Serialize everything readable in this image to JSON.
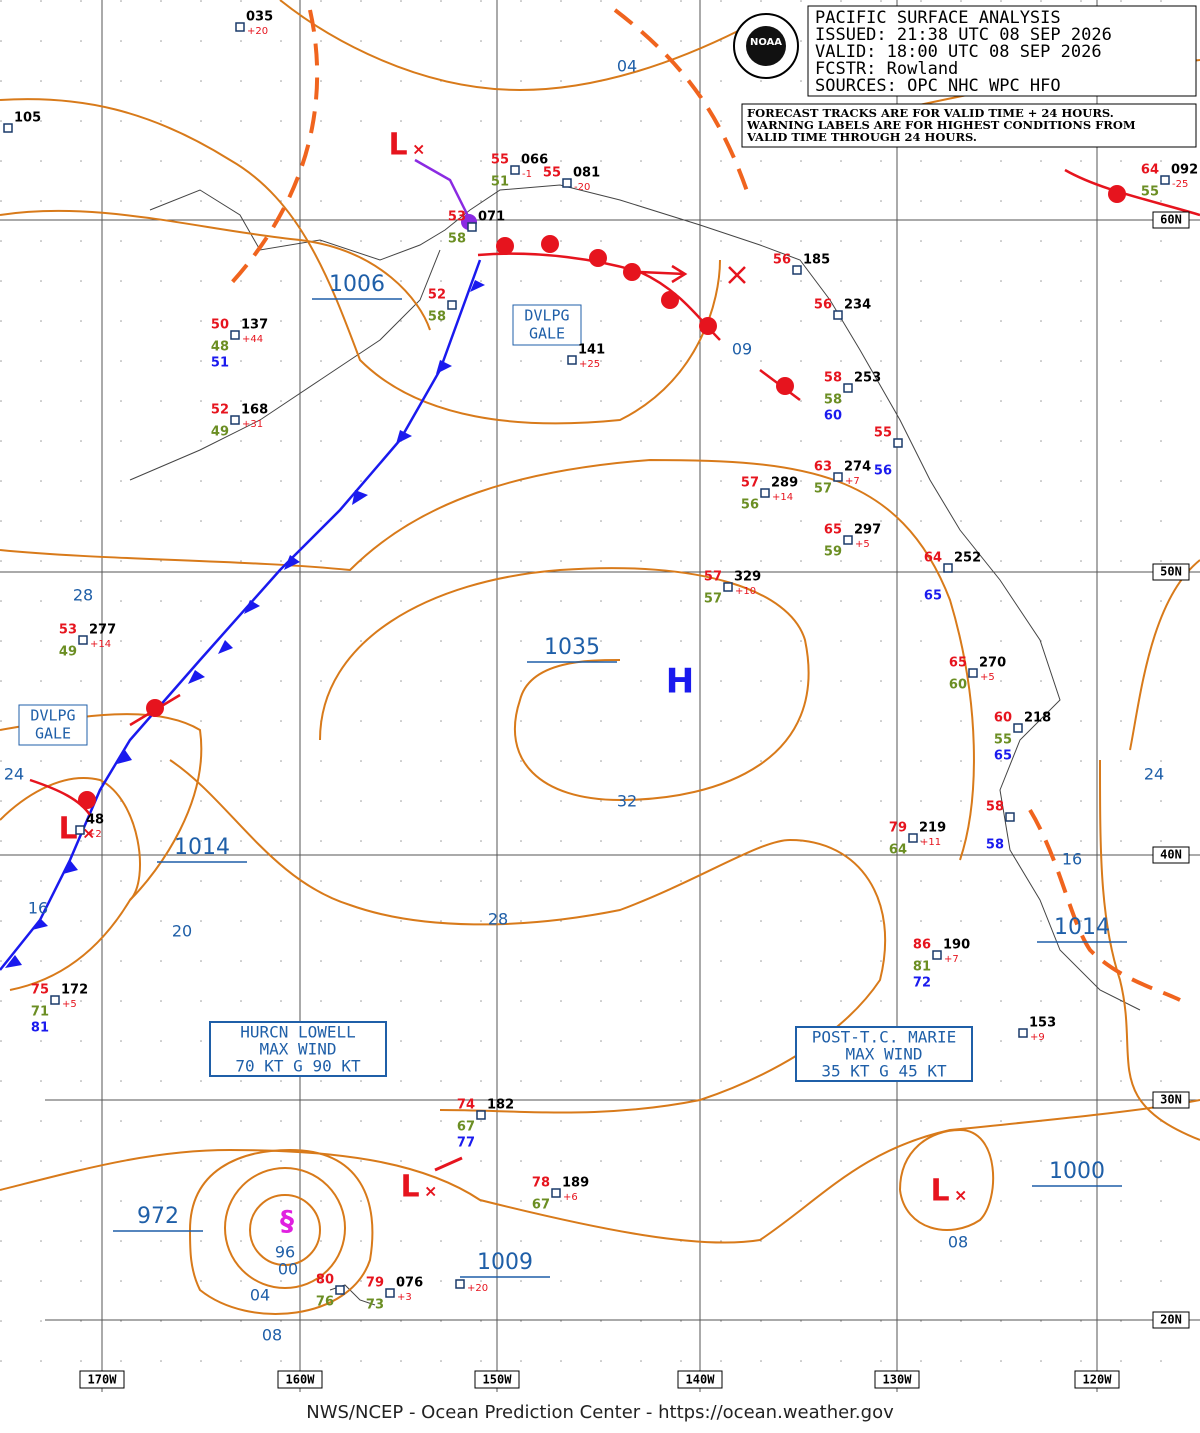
{
  "header": {
    "lines": [
      "PACIFIC SURFACE ANALYSIS",
      "ISSUED: 21:38 UTC 08 SEP 2026",
      "VALID: 18:00 UTC 08 SEP 2026",
      "FCSTR: Rowland",
      "SOURCES: OPC NHC WPC HFO"
    ],
    "logo": "NOAA"
  },
  "note": [
    "FORECAST TRACKS ARE FOR VALID TIME + 24 HOURS.",
    "WARNING LABELS ARE FOR HIGHEST CONDITIONS FROM",
    "VALID TIME THROUGH 24 HOURS."
  ],
  "isobar_labels": [
    "04",
    "1006",
    "09",
    "28",
    "1035",
    "32",
    "24",
    "1014",
    "16",
    "20",
    "28",
    "16",
    "1014",
    "24",
    "972",
    "96",
    "00",
    "04",
    "08",
    "1009",
    "1000",
    "08"
  ],
  "centers": [
    "H",
    "L",
    "L",
    "L",
    "L"
  ],
  "warnings": [
    "DVLPG GALE",
    "DVLPG GALE"
  ],
  "storm_boxes": [
    [
      "HURCN LOWELL",
      "MAX WIND",
      "70 KT G 90 KT"
    ],
    [
      "POST-T.C. MARIE",
      "MAX WIND",
      "35 KT G 45 KT"
    ]
  ],
  "lat_labels": [
    "60N",
    "50N",
    "40N",
    "30N",
    "20N"
  ],
  "lon_labels": [
    "170W",
    "160W",
    "150W",
    "140W",
    "130W",
    "120W"
  ],
  "stations": [
    {
      "pressure": "035",
      "tendency": "+20"
    },
    {
      "pressure": "105"
    },
    {
      "pressure": "066",
      "temp": "55",
      "dew": "51",
      "tendency": "-1"
    },
    {
      "pressure": "081",
      "temp": "55",
      "tendency": "-20"
    },
    {
      "pressure": "071",
      "temp": "53",
      "dew": "58"
    },
    {
      "pressure": "137",
      "temp": "50",
      "dew": "48",
      "extra": "51",
      "tendency": "+44"
    },
    {
      "temp": "52",
      "dew": "58"
    },
    {
      "pressure": "141",
      "tendency": "+25"
    },
    {
      "pressure": "168",
      "temp": "52",
      "dew": "49",
      "tendency": "+31"
    },
    {
      "pressure": "185",
      "temp": "56"
    },
    {
      "pressure": "234",
      "temp": "56"
    },
    {
      "pressure": "253",
      "temp": "58",
      "dew": "58",
      "extra": "60"
    },
    {
      "temp": "55",
      "extra": "56"
    },
    {
      "pressure": "289",
      "temp": "57",
      "dew": "56",
      "tendency": "+14"
    },
    {
      "pressure": "274",
      "temp": "63",
      "dew": "57",
      "tendency": "+7"
    },
    {
      "pressure": "297",
      "temp": "65",
      "dew": "59",
      "tendency": "+5"
    },
    {
      "pressure": "252",
      "temp": "64",
      "extra": "65"
    },
    {
      "pressure": "329",
      "temp": "57",
      "dew": "57",
      "tendency": "+10"
    },
    {
      "pressure": "277",
      "temp": "53",
      "dew": "49",
      "tendency": "+14"
    },
    {
      "pressure": "270",
      "temp": "65",
      "dew": "60",
      "tendency": "+5"
    },
    {
      "pressure": "218",
      "temp": "60",
      "dew": "55",
      "extra": "65"
    },
    {
      "temp": "58",
      "extra": "58"
    },
    {
      "pressure": "219",
      "temp": "79",
      "dew": "64",
      "tendency": "+11"
    },
    {
      "pressure": "48",
      "tendency": "+2"
    },
    {
      "pressure": "190",
      "temp": "86",
      "dew": "81",
      "extra": "72",
      "tendency": "+7"
    },
    {
      "pressure": "172",
      "temp": "75",
      "dew": "71",
      "extra": "81",
      "tendency": "+5"
    },
    {
      "pressure": "153",
      "tendency": "+9"
    },
    {
      "pressure": "182",
      "temp": "74",
      "dew": "67",
      "extra": "77"
    },
    {
      "pressure": "189",
      "temp": "78",
      "dew": "67",
      "tendency": "+6"
    },
    {
      "pressure": "076",
      "temp": "79",
      "dew": "73",
      "tendency": "+3"
    },
    {
      "temp": "80",
      "dew": "76"
    },
    {
      "tendency": "+20"
    },
    {
      "pressure": "092",
      "temp": "64",
      "dew": "55",
      "tendency": "-25"
    }
  ],
  "footer": "NWS/NCEP - Ocean Prediction Center - https://ocean.weather.gov"
}
